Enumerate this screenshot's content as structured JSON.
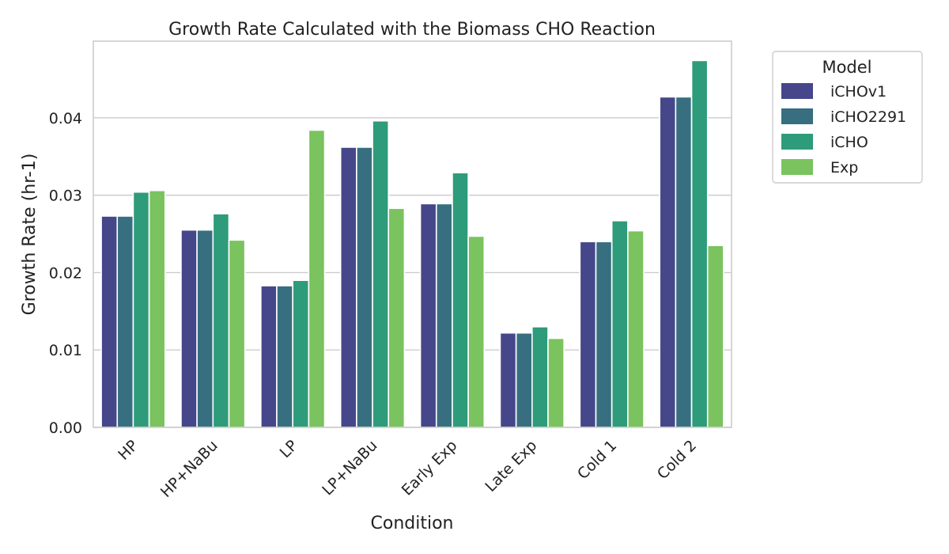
{
  "chart_data": {
    "type": "bar",
    "title": "Growth Rate Calculated with the Biomass CHO Reaction",
    "xlabel": "Condition",
    "ylabel": "Growth Rate (hr-1)",
    "ylim": [
      0,
      0.0499
    ],
    "yticks": [
      "0.00",
      "0.01",
      "0.02",
      "0.03",
      "0.04"
    ],
    "ytick_values": [
      0,
      0.01,
      0.02,
      0.03,
      0.04
    ],
    "grid": "horizontal",
    "legend_position": "outside-right-top",
    "legend_title": "Model",
    "categories": [
      "HP",
      "HP+NaBu",
      "LP",
      "LP+NaBu",
      "Early Exp",
      "Late Exp",
      "Cold 1",
      "Cold 2"
    ],
    "series": [
      {
        "name": "iCHOv1",
        "color": "#46478a",
        "values": [
          0.0273,
          0.0255,
          0.0183,
          0.0362,
          0.0289,
          0.0122,
          0.024,
          0.0427
        ]
      },
      {
        "name": "iCHO2291",
        "color": "#376f80",
        "values": [
          0.0273,
          0.0255,
          0.0183,
          0.0362,
          0.0289,
          0.0122,
          0.024,
          0.0427
        ]
      },
      {
        "name": "iCHO",
        "color": "#2e9b7a",
        "values": [
          0.0304,
          0.0276,
          0.019,
          0.0396,
          0.0329,
          0.013,
          0.0267,
          0.0474
        ]
      },
      {
        "name": "Exp",
        "color": "#7ac35f",
        "values": [
          0.0306,
          0.0242,
          0.0384,
          0.0283,
          0.0247,
          0.0115,
          0.0254,
          0.0235
        ]
      }
    ]
  }
}
